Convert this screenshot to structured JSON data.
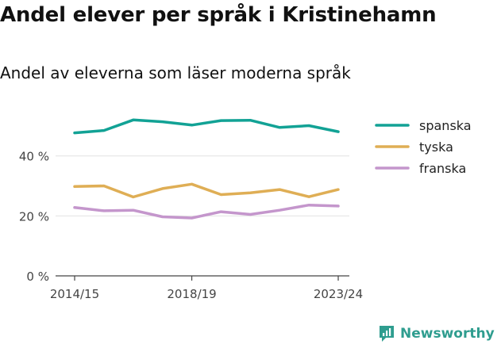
{
  "header": {
    "title": "Andel elever per språk i Kristinehamn",
    "subtitle": "Andel av eleverna som läser moderna språk"
  },
  "branding": {
    "name": "Newsworthy",
    "icon": "newsworthy-logo-icon",
    "color": "#2f9d8f"
  },
  "chart_data": {
    "type": "line",
    "title": "Andel elever per språk i Kristinehamn",
    "subtitle": "Andel av eleverna som läser moderna språk",
    "xlabel": "",
    "ylabel": "",
    "categories": [
      "2014/15",
      "2015/16",
      "2016/17",
      "2017/18",
      "2018/19",
      "2019/20",
      "2020/21",
      "2021/22",
      "2022/23",
      "2023/24"
    ],
    "x_tick_labels": [
      "2014/15",
      "2018/19",
      "2023/24"
    ],
    "y_ticks": [
      0,
      20,
      40
    ],
    "y_tick_labels": [
      "0 %",
      "20 %",
      "40 %"
    ],
    "ylim": [
      0,
      55
    ],
    "grid": true,
    "legend_position": "top-right",
    "series": [
      {
        "name": "spanska",
        "color": "#12a295",
        "values": [
          47.7,
          48.5,
          52.0,
          51.4,
          50.3,
          51.8,
          51.9,
          49.5,
          50.1,
          48.1
        ]
      },
      {
        "name": "tyska",
        "color": "#dfae55",
        "values": [
          29.8,
          30.0,
          26.3,
          29.1,
          30.6,
          27.1,
          27.7,
          28.8,
          26.4,
          28.8
        ]
      },
      {
        "name": "franska",
        "color": "#c496cc",
        "values": [
          22.8,
          21.7,
          21.9,
          19.7,
          19.3,
          21.4,
          20.5,
          21.9,
          23.6,
          23.3
        ]
      }
    ]
  }
}
